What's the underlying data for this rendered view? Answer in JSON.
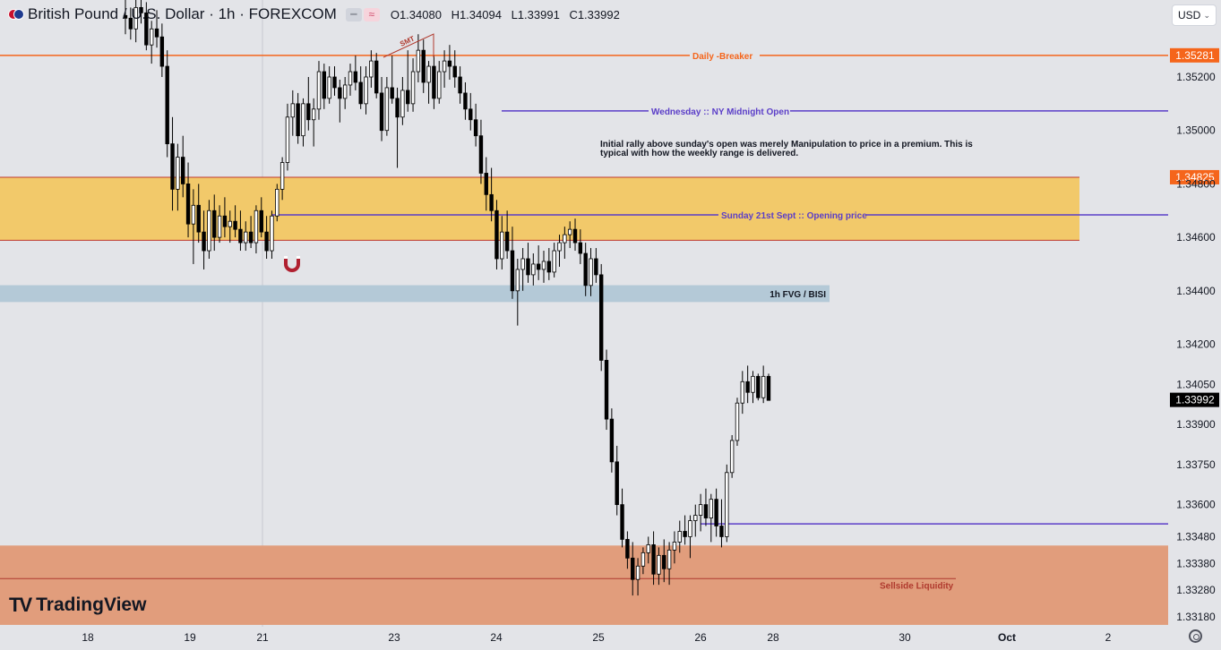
{
  "header": {
    "symbol": "British Pound / U.S. Dollar · 1h · FOREXCOM",
    "open": "O1.34080",
    "high": "H1.34094",
    "low": "L1.33991",
    "close": "C1.33992",
    "currency": "USD"
  },
  "branding": {
    "logo_text": "TradingView"
  },
  "colors": {
    "background": "#e3e4e8",
    "bull": "#ffffff",
    "bear": "#000000",
    "zone_premium": "#f2c96a",
    "zone_fvg": "#b4c9d7",
    "zone_sellside": "#e19d7c",
    "level_purple": "#5b3ec8",
    "level_orange": "#f5651b",
    "level_red": "#b03a2e"
  },
  "chart_data": {
    "type": "candlestick",
    "timeframe": "1h",
    "x_ticks": [
      "18",
      "19",
      "21",
      "23",
      "24",
      "25",
      "26",
      "28",
      "30",
      "Oct",
      "2"
    ],
    "y_ticks": [
      "1.35200",
      "1.35000",
      "1.34800",
      "1.34600",
      "1.34400",
      "1.34200",
      "1.34050",
      "1.33900",
      "1.33750",
      "1.33600",
      "1.33480",
      "1.33380",
      "1.33280",
      "1.33180"
    ],
    "ylim": [
      1.3315,
      1.3549
    ],
    "price_labels": [
      {
        "value": 1.35281,
        "text": "1.35281",
        "color": "#f5651b"
      },
      {
        "value": 1.34825,
        "text": "1.34825",
        "color": "#f5651b"
      },
      {
        "value": 1.33992,
        "text": "1.33992",
        "color": "#000000"
      }
    ],
    "levels": [
      {
        "label": "Daily -Breaker",
        "price": 1.35281,
        "color": "#f5651b"
      },
      {
        "label": "Wednesday :: NY Midnight Open",
        "price": 1.35073,
        "color": "#5b3ec8"
      },
      {
        "label": "Sunday 21st Sept :: Opening price",
        "price": 1.34684,
        "color": "#5b3ec8"
      },
      {
        "label": "",
        "price": 1.33528,
        "color": "#5b3ec8"
      },
      {
        "label": "Sellside Liquidity",
        "price": 1.33323,
        "color": "#b03a2e"
      }
    ],
    "zones": [
      {
        "label": "",
        "top": 1.34825,
        "bottom": 1.34589,
        "color": "#f2c96a"
      },
      {
        "label": "1h FVG / BISI",
        "top": 1.34421,
        "bottom": 1.34358,
        "color": "#b4c9d7"
      },
      {
        "label": "Sellside Liquidity",
        "top": 1.33447,
        "bottom": 1.3315,
        "color": "#e19d7c"
      }
    ],
    "annotations": [
      {
        "text": "Initial rally above sunday's open was merely Manipulation to price in a premium. This is typical with how the weekly range is delivered."
      },
      {
        "text": "SMT"
      }
    ],
    "series": [
      {
        "name": "GBPUSD",
        "ohlc": [
          [
            1.3543,
            1.3554,
            1.3536,
            1.3542
          ],
          [
            1.3542,
            1.3546,
            1.3534,
            1.3538
          ],
          [
            1.3538,
            1.355,
            1.3533,
            1.3546
          ],
          [
            1.3546,
            1.3552,
            1.354,
            1.3544
          ],
          [
            1.3544,
            1.3548,
            1.353,
            1.3532
          ],
          [
            1.3532,
            1.3541,
            1.3525,
            1.3538
          ],
          [
            1.3538,
            1.3545,
            1.3531,
            1.3535
          ],
          [
            1.3535,
            1.354,
            1.352,
            1.3524
          ],
          [
            1.3524,
            1.353,
            1.349,
            1.3495
          ],
          [
            1.3495,
            1.3505,
            1.347,
            1.3478
          ],
          [
            1.3478,
            1.3495,
            1.347,
            1.349
          ],
          [
            1.349,
            1.3498,
            1.3475,
            1.348
          ],
          [
            1.348,
            1.3488,
            1.346,
            1.3465
          ],
          [
            1.3465,
            1.3478,
            1.345,
            1.3472
          ],
          [
            1.3472,
            1.348,
            1.3458,
            1.3462
          ],
          [
            1.3462,
            1.347,
            1.3448,
            1.3455
          ],
          [
            1.3455,
            1.3474,
            1.3452,
            1.347
          ],
          [
            1.347,
            1.3476,
            1.3455,
            1.346
          ],
          [
            1.346,
            1.3472,
            1.3458,
            1.3468
          ],
          [
            1.3468,
            1.3475,
            1.346,
            1.3464
          ],
          [
            1.3464,
            1.347,
            1.3458,
            1.3466
          ],
          [
            1.3466,
            1.3472,
            1.346,
            1.3463
          ],
          [
            1.3463,
            1.347,
            1.3455,
            1.3458
          ],
          [
            1.3458,
            1.3466,
            1.3455,
            1.3462
          ],
          [
            1.3462,
            1.3468,
            1.3456,
            1.3458
          ],
          [
            1.3458,
            1.3472,
            1.3454,
            1.347
          ],
          [
            1.347,
            1.3475,
            1.346,
            1.3462
          ],
          [
            1.3462,
            1.3468,
            1.3452,
            1.3455
          ],
          [
            1.3455,
            1.347,
            1.3452,
            1.3468
          ],
          [
            1.3468,
            1.348,
            1.3466,
            1.3478
          ],
          [
            1.3478,
            1.349,
            1.3474,
            1.3488
          ],
          [
            1.3488,
            1.351,
            1.3485,
            1.3505
          ],
          [
            1.3505,
            1.3515,
            1.3498,
            1.351
          ],
          [
            1.351,
            1.3514,
            1.3495,
            1.3498
          ],
          [
            1.3498,
            1.3512,
            1.3494,
            1.351
          ],
          [
            1.351,
            1.352,
            1.35,
            1.3504
          ],
          [
            1.3504,
            1.3512,
            1.3494,
            1.3508
          ],
          [
            1.3508,
            1.3526,
            1.3504,
            1.3522
          ],
          [
            1.3522,
            1.3525,
            1.3508,
            1.3512
          ],
          [
            1.3512,
            1.3524,
            1.351,
            1.352
          ],
          [
            1.352,
            1.3524,
            1.3513,
            1.3516
          ],
          [
            1.3516,
            1.3519,
            1.3503,
            1.3512
          ],
          [
            1.3512,
            1.352,
            1.3508,
            1.3517
          ],
          [
            1.3517,
            1.3525,
            1.3513,
            1.3522
          ],
          [
            1.3522,
            1.3528,
            1.3515,
            1.3518
          ],
          [
            1.3518,
            1.3524,
            1.3508,
            1.351
          ],
          [
            1.351,
            1.3524,
            1.3506,
            1.352
          ],
          [
            1.352,
            1.353,
            1.3516,
            1.3526
          ],
          [
            1.3526,
            1.3529,
            1.3512,
            1.3514
          ],
          [
            1.3514,
            1.352,
            1.3496,
            1.35
          ],
          [
            1.35,
            1.352,
            1.3498,
            1.3516
          ],
          [
            1.3516,
            1.3528,
            1.351,
            1.3512
          ],
          [
            1.3512,
            1.3516,
            1.3486,
            1.3505
          ],
          [
            1.3505,
            1.352,
            1.3502,
            1.3515
          ],
          [
            1.3515,
            1.353,
            1.3507,
            1.351
          ],
          [
            1.351,
            1.3527,
            1.3507,
            1.3522
          ],
          [
            1.3522,
            1.3536,
            1.3518,
            1.353
          ],
          [
            1.353,
            1.3534,
            1.3514,
            1.3518
          ],
          [
            1.3518,
            1.3526,
            1.351,
            1.3524
          ],
          [
            1.3524,
            1.3528,
            1.3508,
            1.3512
          ],
          [
            1.3512,
            1.3526,
            1.351,
            1.3522
          ],
          [
            1.3522,
            1.353,
            1.3516,
            1.3526
          ],
          [
            1.3526,
            1.3532,
            1.3519,
            1.3524
          ],
          [
            1.3524,
            1.353,
            1.3516,
            1.352
          ],
          [
            1.352,
            1.3524,
            1.351,
            1.3514
          ],
          [
            1.3514,
            1.3518,
            1.3504,
            1.3508
          ],
          [
            1.3508,
            1.3514,
            1.35,
            1.3504
          ],
          [
            1.3504,
            1.351,
            1.3494,
            1.3498
          ],
          [
            1.3498,
            1.3504,
            1.348,
            1.3484
          ],
          [
            1.3484,
            1.349,
            1.347,
            1.3476
          ],
          [
            1.3476,
            1.3486,
            1.3466,
            1.347
          ],
          [
            1.347,
            1.3474,
            1.3448,
            1.3452
          ],
          [
            1.3452,
            1.3468,
            1.3448,
            1.3462
          ],
          [
            1.3462,
            1.347,
            1.3452,
            1.3455
          ],
          [
            1.3455,
            1.3464,
            1.3437,
            1.344
          ],
          [
            1.344,
            1.3452,
            1.3427,
            1.3448
          ],
          [
            1.3448,
            1.3456,
            1.344,
            1.3452
          ],
          [
            1.3452,
            1.3458,
            1.3443,
            1.3446
          ],
          [
            1.3446,
            1.3454,
            1.3442,
            1.345
          ],
          [
            1.345,
            1.3457,
            1.3444,
            1.3448
          ],
          [
            1.3448,
            1.3455,
            1.3443,
            1.3451
          ],
          [
            1.3451,
            1.3456,
            1.3444,
            1.3447
          ],
          [
            1.3447,
            1.3458,
            1.3445,
            1.3455
          ],
          [
            1.3455,
            1.3461,
            1.3449,
            1.3458
          ],
          [
            1.3458,
            1.3464,
            1.3452,
            1.3461
          ],
          [
            1.3461,
            1.3466,
            1.3456,
            1.3463
          ],
          [
            1.3463,
            1.3467,
            1.3455,
            1.3458
          ],
          [
            1.3458,
            1.3463,
            1.345,
            1.3454
          ],
          [
            1.3454,
            1.3458,
            1.3438,
            1.3442
          ],
          [
            1.3442,
            1.3456,
            1.3438,
            1.3452
          ],
          [
            1.3452,
            1.3456,
            1.3443,
            1.3446
          ],
          [
            1.3446,
            1.345,
            1.341,
            1.3414
          ],
          [
            1.3414,
            1.3418,
            1.3388,
            1.3392
          ],
          [
            1.3392,
            1.3396,
            1.3372,
            1.3376
          ],
          [
            1.3376,
            1.3382,
            1.3356,
            1.336
          ],
          [
            1.336,
            1.3366,
            1.3344,
            1.3347
          ],
          [
            1.3347,
            1.335,
            1.3336,
            1.334
          ],
          [
            1.334,
            1.3346,
            1.3326,
            1.3332
          ],
          [
            1.3332,
            1.334,
            1.3326,
            1.3337
          ],
          [
            1.3337,
            1.3344,
            1.3334,
            1.3342
          ],
          [
            1.3342,
            1.3348,
            1.3338,
            1.3345
          ],
          [
            1.3345,
            1.335,
            1.333,
            1.3334
          ],
          [
            1.3334,
            1.3344,
            1.333,
            1.3341
          ],
          [
            1.3341,
            1.3347,
            1.3331,
            1.3336
          ],
          [
            1.3336,
            1.3346,
            1.333,
            1.3343
          ],
          [
            1.3343,
            1.335,
            1.3338,
            1.3346
          ],
          [
            1.3346,
            1.3354,
            1.3342,
            1.335
          ],
          [
            1.335,
            1.3356,
            1.3345,
            1.3348
          ],
          [
            1.3348,
            1.3356,
            1.334,
            1.3354
          ],
          [
            1.3354,
            1.336,
            1.3348,
            1.3356
          ],
          [
            1.3356,
            1.3364,
            1.335,
            1.336
          ],
          [
            1.336,
            1.3366,
            1.3352,
            1.3355
          ],
          [
            1.3355,
            1.3364,
            1.3346,
            1.3362
          ],
          [
            1.3362,
            1.3366,
            1.3348,
            1.3352
          ],
          [
            1.3352,
            1.3362,
            1.3344,
            1.3348
          ],
          [
            1.3348,
            1.3375,
            1.3346,
            1.3372
          ],
          [
            1.3372,
            1.3386,
            1.337,
            1.3384
          ],
          [
            1.3384,
            1.34,
            1.3382,
            1.3398
          ],
          [
            1.3398,
            1.341,
            1.3394,
            1.3406
          ],
          [
            1.3406,
            1.3412,
            1.3398,
            1.3402
          ],
          [
            1.3402,
            1.341,
            1.3398,
            1.3408
          ],
          [
            1.3408,
            1.3409,
            1.3399,
            1.34
          ],
          [
            1.34,
            1.3412,
            1.3398,
            1.3408
          ],
          [
            1.3408,
            1.3409,
            1.3399,
            1.3399
          ]
        ]
      }
    ]
  }
}
